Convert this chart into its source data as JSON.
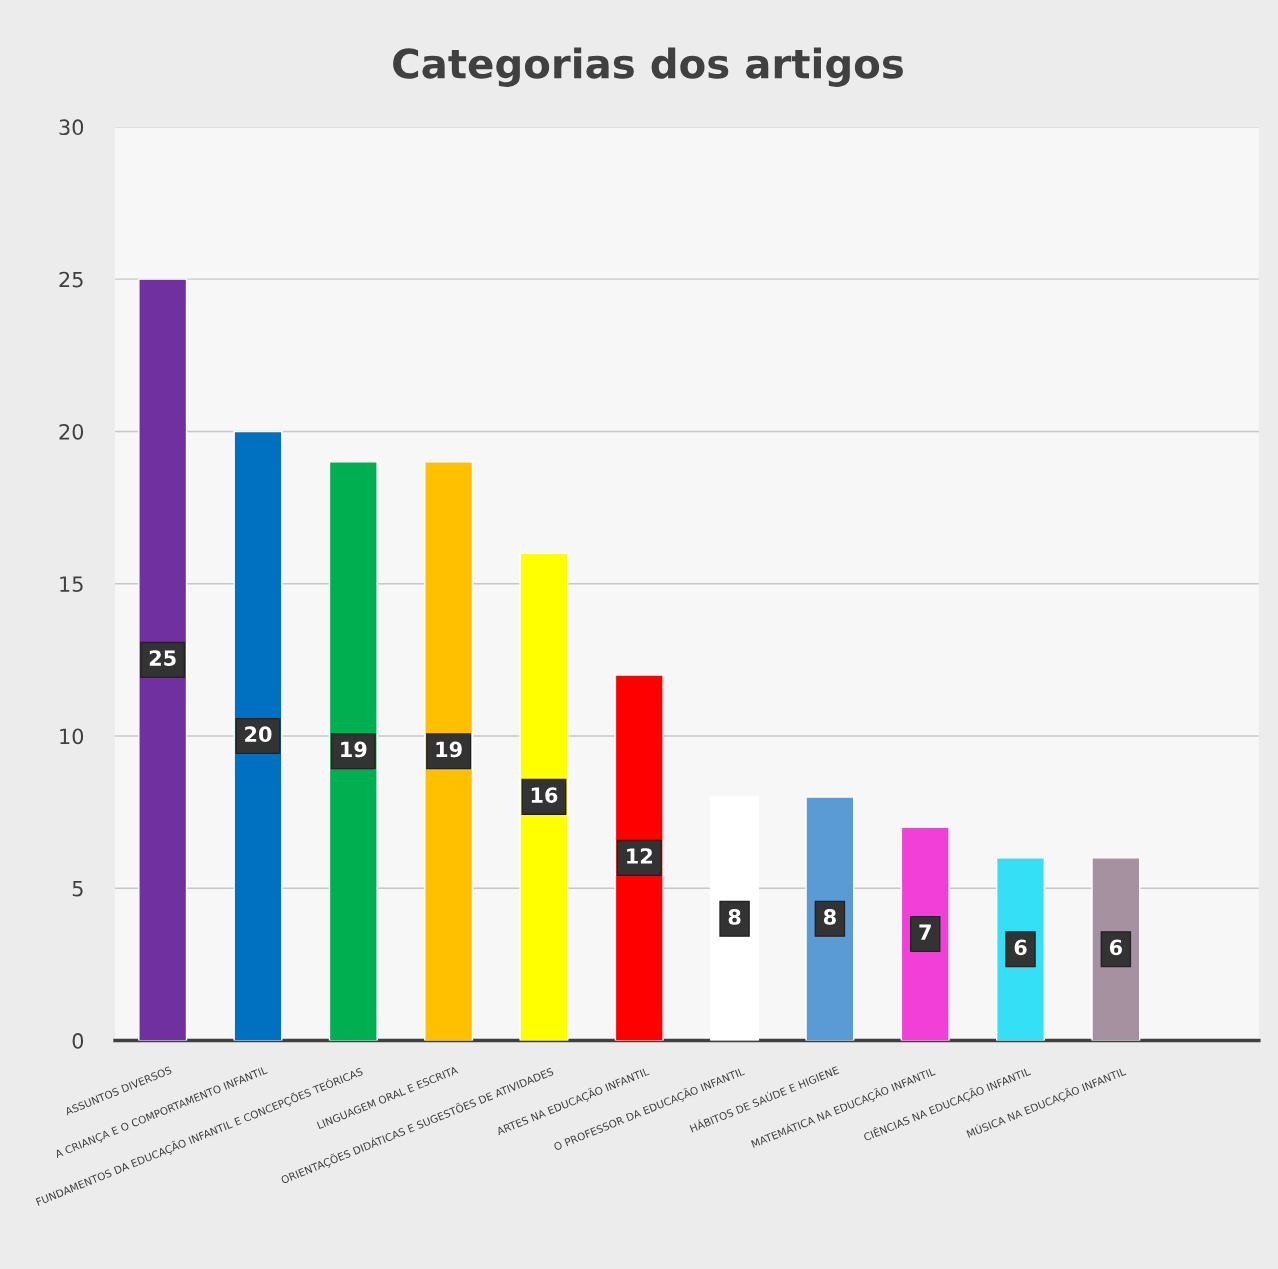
{
  "chart_data": {
    "type": "bar",
    "title": "Categorias dos artigos",
    "categories": [
      "ASSUNTOS DIVERSOS",
      "A CRIANÇA E O COMPORTAMENTO INFANTIL",
      "FUNDAMENTOS DA EDUCAÇÃO INFANTIL E CONCEPÇÕES TEÓRICAS",
      "LINGUAGEM ORAL E ESCRITA",
      "ORIENTAÇÕES DIDÁTICAS E SUGESTÕES DE ATIVIDADES",
      "ARTES NA EDUCAÇÃO INFANTIL",
      "O PROFESSOR DA EDUCAÇÃO INFANTIL",
      "HÁBITOS DE SAÚDE E HIGIENE",
      "MATEMÁTICA NA EDUCAÇÃO INFANTIL",
      "CIÊNCIAS NA EDUCAÇÃO INFANTIL",
      "MÚSICA NA EDUCAÇÃO INFANTIL",
      null
    ],
    "values": [
      25,
      20,
      19,
      19,
      16,
      12,
      8,
      8,
      7,
      6,
      6,
      null
    ],
    "colors": [
      "#7030a0",
      "#0070c0",
      "#00b050",
      "#ffc000",
      "#ffff00",
      "#ff0000",
      "#ffffff",
      "#5b9bd5",
      "#f23fd8",
      "#33e0f5",
      "#a5919f",
      "#ffffff"
    ],
    "ylim": [
      0,
      30
    ],
    "yticks": [
      0,
      5,
      10,
      15,
      20,
      25,
      30
    ],
    "grid": "y",
    "data_labels": true
  }
}
